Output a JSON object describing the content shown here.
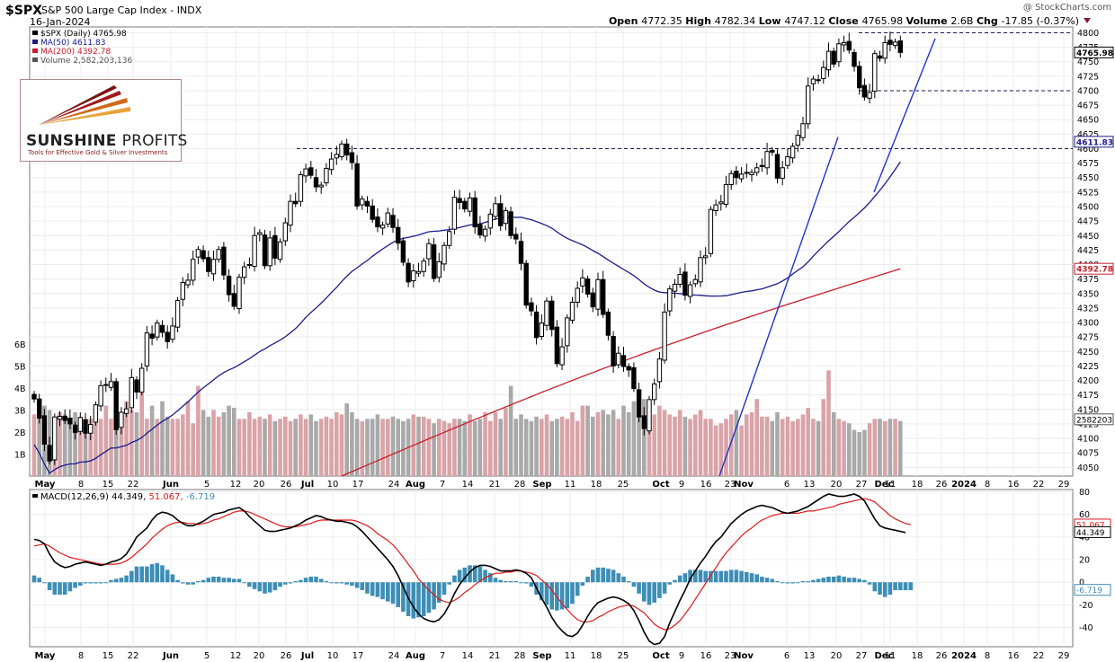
{
  "header": {
    "symbol": "$SPX",
    "name": "S&P 500 Large Cap Index",
    "exchange": "INDX",
    "date": "16-Jan-2024",
    "watermark": "@ StockCharts.com",
    "open_label": "Open",
    "open": "4772.35",
    "high_label": "High",
    "high": "4782.34",
    "low_label": "Low",
    "low": "4747.12",
    "close_label": "Close",
    "close": "4765.98",
    "volume_label": "Volume",
    "volume": "2.6B",
    "chg_label": "Chg",
    "chg": "-17.85 (-0.37%)"
  },
  "legend": {
    "price": "$SPX (Daily) 4765.98",
    "ma50": "MA(50) 4611.83",
    "ma200": "MA(200) 4392.78",
    "volume": "Volume 2,582,203,136",
    "macd_label": "MACD(12,26,9)",
    "macd_val": "44.349,",
    "signal_val": "51.067,",
    "hist_val": "-6.719"
  },
  "logo": {
    "brand_bold": "SUNSHINE",
    "brand_light": "PROFITS",
    "tagline": "Tools for Effective Gold & Silver Investments"
  },
  "colors": {
    "up_volume": "#d9a3a8",
    "down_volume": "#a9a9a9",
    "ma50": "#1a1a8c",
    "ma200": "#c81e2a",
    "trendline": "#2233cc",
    "level": "#1a1a50",
    "macd": "#000000",
    "signal": "#e01818",
    "histogram": "#3d8eb5"
  },
  "chart_data": [
    {
      "type": "candlestick",
      "title": "$SPX S&P 500 Large Cap Index - INDX (Daily)",
      "ylim": [
        4035,
        4810
      ],
      "y_ticks": [
        4050,
        4075,
        4100,
        4125,
        4150,
        4175,
        4200,
        4225,
        4250,
        4275,
        4300,
        4325,
        4350,
        4375,
        4400,
        4425,
        4450,
        4475,
        4500,
        4525,
        4550,
        4575,
        4600,
        4625,
        4650,
        4675,
        4700,
        4725,
        4750,
        4775,
        4800
      ],
      "x_ticks": [
        "May",
        "8",
        "15",
        "22",
        "Jun",
        "5",
        "12",
        "20",
        "26",
        "Jul",
        "10",
        "17",
        "24",
        "Aug",
        "7",
        "14",
        "21",
        "28",
        "Sep",
        "11",
        "18",
        "25",
        "Oct",
        "9",
        "16",
        "23",
        "Nov",
        "6",
        "13",
        "20",
        "27",
        "Dec",
        "11",
        "18",
        "26",
        "2024",
        "8",
        "16",
        "22",
        "29"
      ],
      "date_range": [
        "2023-05-01",
        "2024-01-16"
      ],
      "price_tags": {
        "last": "4765.98",
        "ma50": "4611.83",
        "ma200": "4392.78",
        "volume": "2582203"
      },
      "resistance_levels": [
        4800,
        4700,
        4600
      ],
      "closes": [
        4168,
        4135,
        4090,
        4061,
        4137,
        4138,
        4131,
        4125,
        4110,
        4136,
        4109,
        4124,
        4158,
        4191,
        4192,
        4198,
        4115,
        4145,
        4151,
        4205,
        4180,
        4221,
        4282,
        4273,
        4299,
        4283,
        4267,
        4294,
        4338,
        4369,
        4373,
        4409,
        4426,
        4410,
        4388,
        4409,
        4426,
        4382,
        4348,
        4328,
        4378,
        4396,
        4399,
        4450,
        4455,
        4398,
        4446,
        4411,
        4439,
        4472,
        4509,
        4505,
        4555,
        4565,
        4554,
        4534,
        4537,
        4566,
        4582,
        4590,
        4608,
        4589,
        4576,
        4501,
        4513,
        4501,
        4478,
        4465,
        4468,
        4489,
        4464,
        4437,
        4404,
        4370,
        4389,
        4388,
        4406,
        4436,
        4376,
        4405,
        4433,
        4457,
        4516,
        4507,
        4496,
        4515,
        4465,
        4451,
        4461,
        4487,
        4505,
        4467,
        4493,
        4450,
        4444,
        4402,
        4330,
        4320,
        4274,
        4299,
        4337,
        4288,
        4229,
        4258,
        4308,
        4335,
        4359,
        4377,
        4349,
        4327,
        4374,
        4314,
        4278,
        4225,
        4247,
        4224,
        4218,
        4186,
        4137,
        4117,
        4167,
        4194,
        4237,
        4318,
        4358,
        4366,
        4383,
        4347,
        4365,
        4374,
        4412,
        4415,
        4495,
        4503,
        4508,
        4538,
        4557,
        4550,
        4556,
        4559,
        4559,
        4567,
        4569,
        4595,
        4594,
        4549,
        4567,
        4586,
        4604,
        4623,
        4643,
        4708,
        4720,
        4719,
        4740,
        4768,
        4746,
        4781,
        4783,
        4770,
        4742,
        4705,
        4689,
        4697,
        4764,
        4756,
        4783,
        4780,
        4784,
        4766
      ],
      "volume_billions": [
        2.8,
        3.1,
        3.2,
        3.0,
        2.6,
        2.9,
        2.8,
        2.6,
        2.9,
        2.7,
        2.6,
        2.6,
        2.7,
        2.6,
        3.2,
        2.6,
        2.8,
        2.7,
        3.4,
        3.0,
        2.9,
        3.8,
        2.6,
        3.2,
        2.6,
        3.4,
        2.7,
        2.6,
        2.6,
        2.8,
        3.4,
        2.4,
        4.1,
        3.0,
        2.7,
        3.0,
        2.7,
        2.9,
        3.2,
        3.1,
        2.6,
        2.6,
        2.9,
        2.6,
        2.7,
        2.6,
        2.8,
        2.5,
        2.6,
        2.7,
        2.5,
        2.6,
        2.8,
        2.6,
        2.8,
        2.5,
        2.6,
        2.7,
        2.6,
        2.9,
        2.8,
        3.3,
        2.9,
        2.6,
        2.5,
        2.6,
        2.6,
        2.8,
        2.6,
        2.6,
        2.7,
        2.6,
        2.5,
        2.6,
        2.8,
        2.7,
        2.7,
        2.6,
        2.4,
        2.6,
        2.5,
        2.4,
        2.6,
        2.6,
        2.5,
        2.8,
        2.5,
        2.6,
        2.9,
        2.5,
        2.9,
        2.6,
        3.1,
        4.1,
        2.6,
        2.8,
        2.6,
        2.5,
        2.7,
        2.6,
        2.8,
        2.5,
        2.6,
        2.7,
        2.6,
        2.9,
        2.5,
        3.2,
        3.2,
        2.7,
        2.9,
        3.0,
        2.8,
        3.0,
        2.6,
        3.2,
        2.9,
        3.4,
        3.0,
        3.5,
        3.1,
        2.8,
        3.2,
        3.0,
        2.8,
        2.7,
        3.0,
        2.7,
        2.6,
        2.8,
        3.0,
        2.6,
        2.6,
        2.3,
        2.4,
        2.6,
        2.8,
        3.0,
        2.3,
        2.8,
        2.9,
        3.5,
        2.7,
        2.7,
        2.5,
        2.9,
        2.6,
        2.7,
        2.5,
        2.6,
        2.8,
        3.1,
        2.6,
        2.5,
        3.5,
        4.8,
        2.9,
        2.6,
        2.5,
        2.4,
        2.1,
        2.0,
        2.1,
        2.4,
        2.6,
        2.6,
        2.5,
        2.6,
        2.6,
        2.5,
        2.5,
        2.6,
        2.6,
        2.6
      ]
    },
    {
      "type": "line",
      "title": "MACD(12,26,9)",
      "ylim": [
        -57,
        82
      ],
      "y_ticks": [
        -40,
        -20,
        0,
        20,
        40,
        60,
        80
      ],
      "series": [
        {
          "name": "MACD(12,26,9)",
          "values": [
            38,
            37,
            34,
            25,
            18,
            15,
            13,
            14,
            16,
            17,
            18,
            17,
            16,
            15,
            16,
            18,
            19,
            21,
            25,
            32,
            40,
            44,
            48,
            55,
            60,
            62,
            61,
            59,
            55,
            52,
            50,
            50,
            52,
            54,
            57,
            60,
            61,
            62,
            64,
            65,
            66,
            63,
            58,
            54,
            50,
            46,
            45,
            45,
            46,
            47,
            48,
            50,
            52,
            55,
            57,
            59,
            58,
            56,
            55,
            54,
            54,
            53,
            52,
            49,
            45,
            40,
            35,
            30,
            25,
            20,
            14,
            6,
            -4,
            -14,
            -22,
            -28,
            -32,
            -34,
            -35,
            -33,
            -28,
            -20,
            -10,
            -2,
            4,
            9,
            13,
            15,
            15,
            14,
            12,
            10,
            10,
            10,
            11,
            10,
            8,
            4,
            -5,
            -14,
            -22,
            -31,
            -38,
            -43,
            -47,
            -48,
            -45,
            -38,
            -30,
            -23,
            -18,
            -16,
            -14,
            -13,
            -14,
            -16,
            -19,
            -25,
            -34,
            -44,
            -52,
            -55,
            -54,
            -48,
            -36,
            -26,
            -16,
            -7,
            3,
            10,
            17,
            23,
            30,
            36,
            40,
            46,
            52,
            56,
            60,
            63,
            65,
            67,
            68,
            67,
            66,
            64,
            62,
            61,
            62,
            63,
            65,
            67,
            70,
            73,
            76,
            78,
            77,
            76,
            76,
            77,
            78,
            76,
            72,
            64,
            56,
            50,
            48,
            47,
            46,
            45,
            44
          ]
        },
        {
          "name": "Signal",
          "values": [
            32,
            33,
            34,
            32,
            29,
            26,
            24,
            22,
            21,
            20,
            19,
            18,
            17,
            16,
            16,
            16,
            16,
            17,
            19,
            22,
            26,
            30,
            34,
            39,
            43,
            47,
            50,
            52,
            53,
            53,
            52,
            52,
            51,
            52,
            53,
            55,
            56,
            58,
            60,
            62,
            63,
            63,
            62,
            60,
            58,
            56,
            54,
            52,
            50,
            49,
            49,
            49,
            50,
            51,
            52,
            54,
            55,
            55,
            55,
            55,
            55,
            55,
            55,
            54,
            52,
            50,
            47,
            43,
            40,
            37,
            33,
            28,
            22,
            16,
            10,
            3,
            -2,
            -7,
            -11,
            -15,
            -17,
            -18,
            -16,
            -13,
            -9,
            -6,
            -2,
            1,
            4,
            6,
            8,
            8,
            9,
            9,
            10,
            10,
            9,
            8,
            6,
            2,
            -2,
            -7,
            -13,
            -19,
            -24,
            -29,
            -33,
            -35,
            -35,
            -34,
            -31,
            -29,
            -26,
            -24,
            -22,
            -21,
            -20,
            -21,
            -24,
            -27,
            -32,
            -37,
            -40,
            -42,
            -41,
            -38,
            -34,
            -28,
            -22,
            -15,
            -8,
            -1,
            6,
            13,
            20,
            26,
            31,
            36,
            41,
            45,
            48,
            52,
            55,
            57,
            59,
            60,
            61,
            61,
            61,
            61,
            62,
            63,
            63,
            64,
            65,
            66,
            67,
            69,
            70,
            71,
            72,
            73,
            74,
            73,
            71,
            67,
            63,
            59,
            56,
            54,
            52,
            51
          ]
        }
      ],
      "histogram": [
        6,
        4,
        0,
        -7,
        -11,
        -11,
        -11,
        -8,
        -5,
        -3,
        -1,
        -1,
        -1,
        -1,
        0,
        2,
        3,
        4,
        6,
        10,
        14,
        14,
        14,
        16,
        17,
        15,
        11,
        7,
        2,
        -1,
        -2,
        -2,
        1,
        2,
        4,
        5,
        5,
        4,
        4,
        3,
        3,
        0,
        -4,
        -6,
        -8,
        -10,
        -9,
        -7,
        -4,
        -2,
        -1,
        1,
        2,
        4,
        5,
        5,
        3,
        1,
        0,
        -1,
        -1,
        -2,
        -3,
        -5,
        -7,
        -10,
        -12,
        -13,
        -15,
        -17,
        -19,
        -22,
        -26,
        -30,
        -32,
        -31,
        -30,
        -27,
        -24,
        -18,
        -11,
        -2,
        6,
        11,
        13,
        15,
        15,
        14,
        11,
        8,
        4,
        2,
        1,
        1,
        1,
        0,
        -1,
        -4,
        -11,
        -16,
        -20,
        -24,
        -25,
        -24,
        -23,
        -19,
        -12,
        -3,
        5,
        11,
        13,
        13,
        12,
        11,
        8,
        5,
        1,
        -4,
        -10,
        -17,
        -20,
        -18,
        -14,
        -10,
        -2,
        2,
        6,
        8,
        11,
        11,
        11,
        10,
        10,
        10,
        10,
        10,
        11,
        11,
        10,
        9,
        8,
        7,
        5,
        4,
        3,
        1,
        0,
        -1,
        -1,
        0,
        1,
        1,
        2,
        3,
        4,
        5,
        5,
        6,
        5,
        4,
        4,
        3,
        2,
        -2,
        -8,
        -11,
        -13,
        -11,
        -7,
        -7,
        -7,
        -7
      ]
    }
  ]
}
